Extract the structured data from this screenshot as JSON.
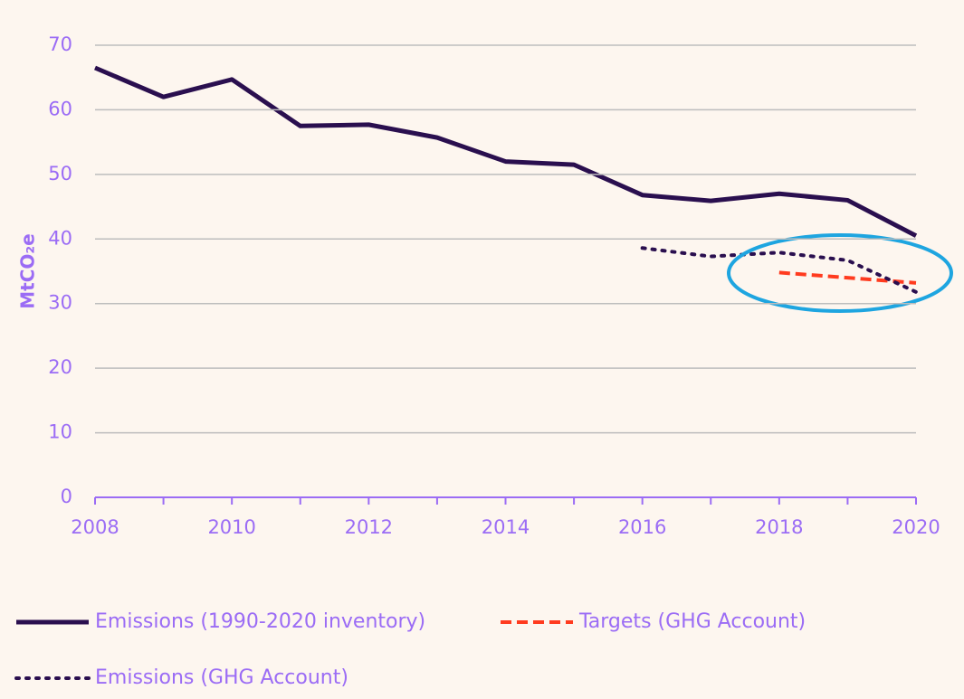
{
  "chart_data": {
    "type": "line",
    "ylabel": "MtCO₂e",
    "xlim": [
      2008,
      2020
    ],
    "xticks": [
      2008,
      2010,
      2012,
      2014,
      2016,
      2018,
      2020
    ],
    "ylim": [
      0,
      70
    ],
    "yticks": [
      0,
      10,
      20,
      30,
      40,
      50,
      60,
      70
    ],
    "grid": true,
    "series": [
      {
        "name": "Emissions (1990-2020 inventory)",
        "color": "#2a0f4f",
        "style": "solid",
        "x": [
          2008,
          2009,
          2010,
          2011,
          2012,
          2013,
          2014,
          2015,
          2016,
          2017,
          2018,
          2019,
          2020
        ],
        "values": [
          66.5,
          62,
          64.7,
          57.5,
          57.7,
          55.7,
          52,
          51.5,
          46.8,
          45.9,
          47,
          46,
          40.5
        ]
      },
      {
        "name": "Targets (GHG Account)",
        "color": "#ff3b1f",
        "style": "dashed",
        "x": [
          2018,
          2020
        ],
        "values": [
          34.8,
          33.2
        ]
      },
      {
        "name": "Emissions (GHG Account)",
        "color": "#2a0f4f",
        "style": "dotted",
        "x": [
          2016,
          2017,
          2018,
          2019,
          2020
        ],
        "values": [
          38.6,
          37.3,
          37.9,
          36.7,
          31.8
        ]
      }
    ]
  }
}
